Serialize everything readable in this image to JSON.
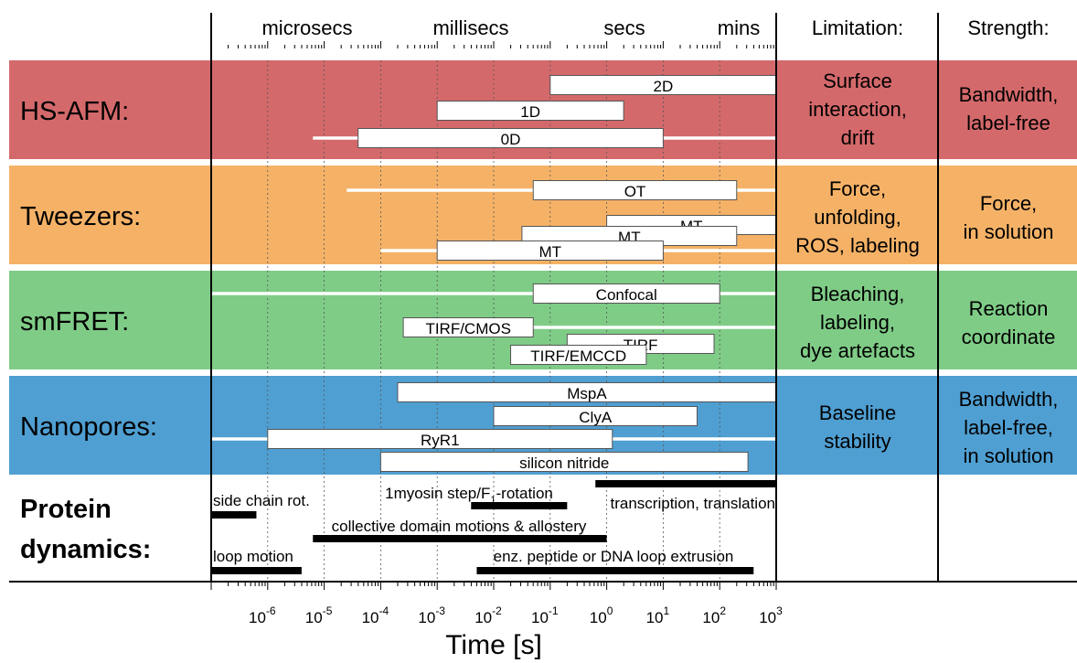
{
  "header": {
    "scale_labels": [
      "microsecs",
      "millisecs",
      "secs",
      "mins"
    ],
    "limitation_title": "Limitation:",
    "strength_title": "Strength:"
  },
  "colors": {
    "afm": "#d4696b",
    "tweezers": "#f5b267",
    "smfret": "#7fcc87",
    "nanopores": "#4f9fd2",
    "bar_fill": "#ffffff",
    "line": "#ffffff",
    "dynamics": "#000000"
  },
  "rows": [
    {
      "id": "afm",
      "title": "HS-AFM:",
      "limitation": [
        "Surface",
        "interaction,",
        "drift"
      ],
      "strength": [
        "Bandwidth,",
        "label-free"
      ],
      "bars": [
        {
          "label": "2D",
          "box": [
            -1,
            3
          ],
          "line": null
        },
        {
          "label": "1D",
          "box": [
            -3,
            0.3
          ],
          "line": null
        },
        {
          "label": "0D",
          "box": [
            -4.4,
            1
          ],
          "line": [
            -5.2,
            3
          ]
        }
      ]
    },
    {
      "id": "tweezers",
      "title": "Tweezers:",
      "limitation": [
        "Force,",
        "unfolding,",
        "ROS, labeling"
      ],
      "strength": [
        "Force,",
        "in solution"
      ],
      "bars": [
        {
          "label": "OT",
          "box": [
            -1.3,
            2.3
          ],
          "line": [
            -4.6,
            3
          ]
        },
        {
          "label": "MT",
          "box": [
            0,
            3
          ],
          "line": null
        },
        {
          "label": "MT",
          "box": [
            -1.5,
            2.3
          ],
          "line": null
        },
        {
          "label": "MT",
          "box": [
            -3,
            1
          ],
          "line": [
            -4,
            3
          ]
        }
      ]
    },
    {
      "id": "smfret",
      "title": "smFRET:",
      "limitation": [
        "Bleaching,",
        "labeling,",
        "dye artefacts"
      ],
      "strength": [
        "Reaction",
        "coordinate"
      ],
      "bars": [
        {
          "label": "Confocal",
          "box": [
            -1.3,
            2
          ],
          "line": [
            -7,
            3
          ]
        },
        {
          "label": "TIRF/CMOS",
          "box": [
            -3.6,
            -1.3
          ],
          "line": [
            -3.6,
            3
          ]
        },
        {
          "label": "TIRF",
          "box": [
            -0.7,
            1.9
          ],
          "line": null
        },
        {
          "label": "TIRF/EMCCD",
          "box": [
            -1.7,
            0.7
          ],
          "line": null
        }
      ]
    },
    {
      "id": "nanopores",
      "title": "Nanopores:",
      "limitation": [
        "Baseline",
        "stability"
      ],
      "strength": [
        "Bandwidth,",
        "label-free,",
        "in solution"
      ],
      "bars": [
        {
          "label": "MspA",
          "box": [
            -3.7,
            3
          ],
          "line": null
        },
        {
          "label": "ClyA",
          "box": [
            -2,
            1.6
          ],
          "line": null
        },
        {
          "label": "RyR1",
          "box": [
            -6,
            0.1
          ],
          "line": [
            -7,
            3
          ]
        },
        {
          "label": "silicon nitride",
          "box": [
            -4,
            2.5
          ],
          "line": null
        }
      ]
    }
  ],
  "dynamics": {
    "title": [
      "Protein",
      "dynamics:"
    ],
    "bars": [
      {
        "label": "side chain rot.",
        "range": [
          -7,
          -6.2
        ]
      },
      {
        "label_main": "1myosin step/F",
        "label_sub": "1",
        "label_tail": "-rotation",
        "range": [
          -2.4,
          -0.7
        ]
      },
      {
        "label": "transcription, translation",
        "range": [
          -0.2,
          3
        ]
      },
      {
        "label": "collective domain motions & allostery",
        "range": [
          -5.2,
          0
        ]
      },
      {
        "label": "loop motion",
        "range": [
          -7,
          -5.4
        ]
      },
      {
        "label": "enz. peptide or DNA loop extrusion",
        "range": [
          -2.3,
          2.6
        ]
      }
    ]
  },
  "axis": {
    "xlabel": "Time [s]",
    "ticks": [
      {
        "base": "10",
        "exp": "-6",
        "value": -6
      },
      {
        "base": "10",
        "exp": "-5",
        "value": -5
      },
      {
        "base": "10",
        "exp": "-4",
        "value": -4
      },
      {
        "base": "10",
        "exp": "-3",
        "value": -3
      },
      {
        "base": "10",
        "exp": "-2",
        "value": -2
      },
      {
        "base": "10",
        "exp": "-1",
        "value": -1
      },
      {
        "base": "10",
        "exp": "0",
        "value": 0
      },
      {
        "base": "10",
        "exp": "1",
        "value": 1
      },
      {
        "base": "10",
        "exp": "2",
        "value": 2
      },
      {
        "base": "10",
        "exp": "3",
        "value": 3
      }
    ],
    "range_log10": [
      -7,
      3
    ],
    "scale": "log"
  }
}
